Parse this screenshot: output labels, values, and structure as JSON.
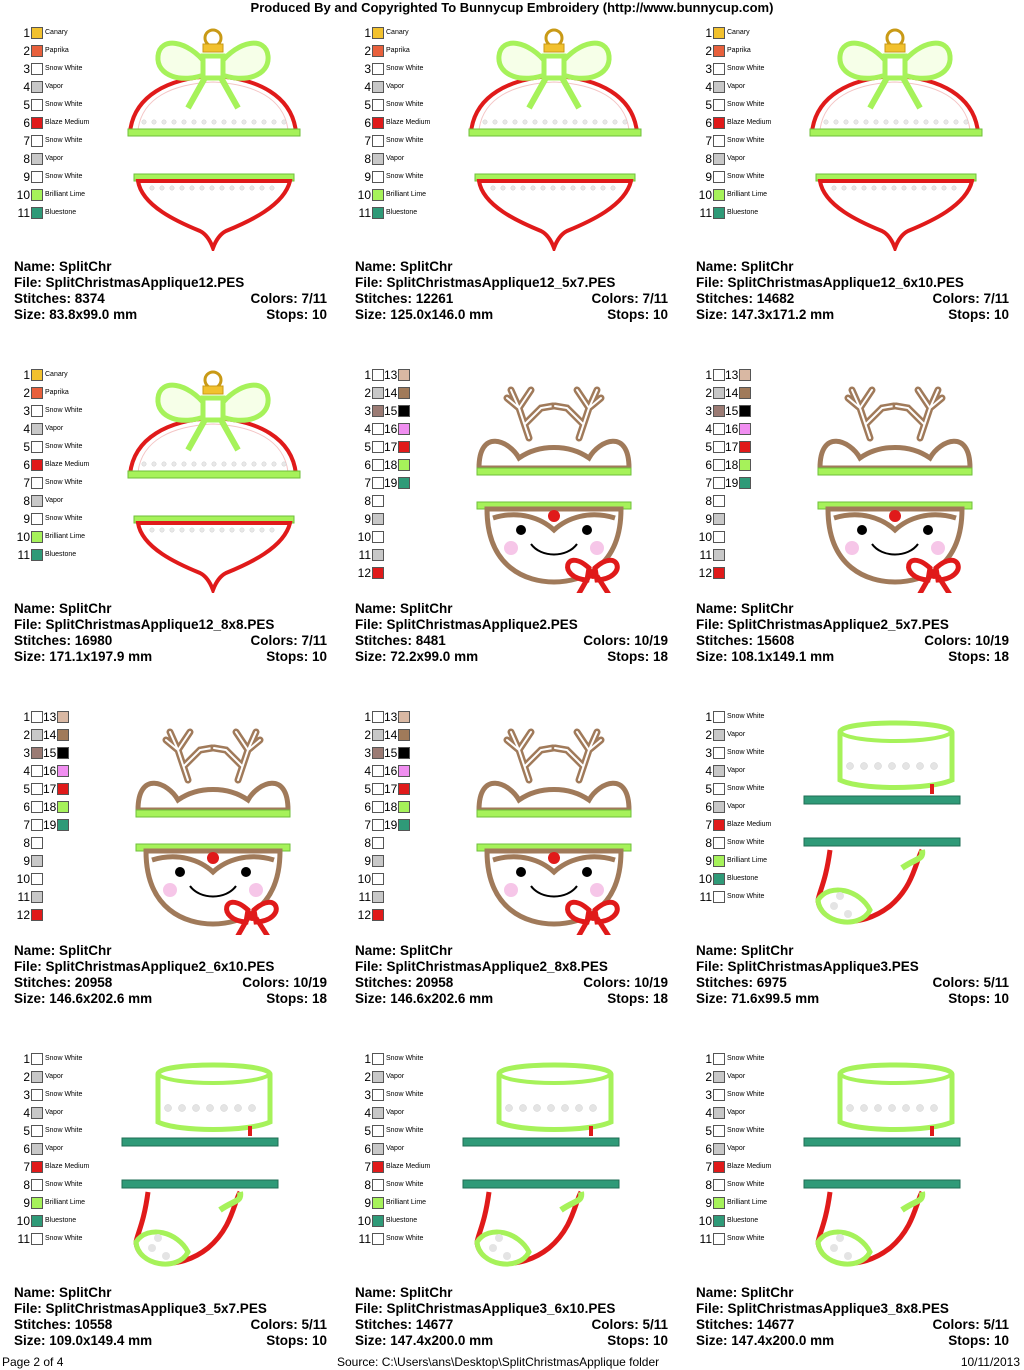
{
  "header": {
    "title": "Produced By and Copyrighted To Bunnycup Embroidery (http://www.bunnycup.com)"
  },
  "footer": {
    "page": "Page 2 of 4",
    "source": "Source: C:\\Users\\ans\\Desktop\\SplitChristmasApplique folder",
    "date": "10/11/2013"
  },
  "colors": {
    "canary": "#f2c12e",
    "paprika": "#e8603c",
    "snow_white": "#ffffff",
    "vapor": "#c8c8c8",
    "blaze_medium": "#e01a1a",
    "brilliant_lime": "#a6f25a",
    "bluestone": "#2f9a78",
    "tan_light": "#d9b8a3",
    "brown": "#a07a5a",
    "mauve": "#9b7b74",
    "black": "#000000",
    "pink": "#f08ef0"
  },
  "palettes": {
    "ornament": [
      {
        "n": "1",
        "name": "Canary",
        "color": "#f2c12e"
      },
      {
        "n": "2",
        "name": "Paprika",
        "color": "#e8603c"
      },
      {
        "n": "3",
        "name": "Snow White",
        "color": "#ffffff"
      },
      {
        "n": "4",
        "name": "Vapor",
        "color": "#c8c8c8"
      },
      {
        "n": "5",
        "name": "Snow White",
        "color": "#ffffff"
      },
      {
        "n": "6",
        "name": "Blaze Medium",
        "color": "#e01a1a"
      },
      {
        "n": "7",
        "name": "Snow White",
        "color": "#ffffff"
      },
      {
        "n": "8",
        "name": "Vapor",
        "color": "#c8c8c8"
      },
      {
        "n": "9",
        "name": "Snow White",
        "color": "#ffffff"
      },
      {
        "n": "10",
        "name": "Brilliant Lime",
        "color": "#a6f25a"
      },
      {
        "n": "11",
        "name": "Bluestone",
        "color": "#2f9a78"
      }
    ],
    "reindeer": [
      {
        "n": "1",
        "color": "#ffffff",
        "n2": "13",
        "color2": "#d9b8a3"
      },
      {
        "n": "2",
        "color": "#c8c8c8",
        "n2": "14",
        "color2": "#a07a5a"
      },
      {
        "n": "3",
        "color": "#9b7b74",
        "n2": "15",
        "color2": "#000000"
      },
      {
        "n": "4",
        "color": "#ffffff",
        "n2": "16",
        "color2": "#f08ef0"
      },
      {
        "n": "5",
        "color": "#ffffff",
        "n2": "17",
        "color2": "#e01a1a"
      },
      {
        "n": "6",
        "color": "#ffffff",
        "n2": "18",
        "color2": "#a6f25a"
      },
      {
        "n": "7",
        "color": "#ffffff",
        "n2": "19",
        "color2": "#2f9a78"
      },
      {
        "n": "8",
        "color": "#ffffff"
      },
      {
        "n": "9",
        "color": "#c8c8c8"
      },
      {
        "n": "10",
        "color": "#ffffff"
      },
      {
        "n": "11",
        "color": "#c8c8c8"
      },
      {
        "n": "12",
        "color": "#e01a1a"
      }
    ],
    "stocking": [
      {
        "n": "1",
        "name": "Snow White",
        "color": "#ffffff"
      },
      {
        "n": "2",
        "name": "Vapor",
        "color": "#c8c8c8"
      },
      {
        "n": "3",
        "name": "Snow White",
        "color": "#ffffff"
      },
      {
        "n": "4",
        "name": "Vapor",
        "color": "#c8c8c8"
      },
      {
        "n": "5",
        "name": "Snow White",
        "color": "#ffffff"
      },
      {
        "n": "6",
        "name": "Vapor",
        "color": "#c8c8c8"
      },
      {
        "n": "7",
        "name": "Blaze Medium",
        "color": "#e01a1a"
      },
      {
        "n": "8",
        "name": "Snow White",
        "color": "#ffffff"
      },
      {
        "n": "9",
        "name": "Brilliant Lime",
        "color": "#a6f25a"
      },
      {
        "n": "10",
        "name": "Bluestone",
        "color": "#2f9a78"
      },
      {
        "n": "11",
        "name": "Snow White",
        "color": "#ffffff"
      }
    ]
  },
  "designs": [
    {
      "kind": "ornament",
      "name": "Name: SplitChr",
      "file": "File: SplitChristmasApplique12.PES",
      "stitches": "Stitches: 8374",
      "colors": "Colors: 7/11",
      "size": "Size: 83.8x99.0 mm",
      "stops": "Stops: 10"
    },
    {
      "kind": "ornament",
      "name": "Name: SplitChr",
      "file": "File: SplitChristmasApplique12_5x7.PES",
      "stitches": "Stitches: 12261",
      "colors": "Colors: 7/11",
      "size": "Size: 125.0x146.0 mm",
      "stops": "Stops: 10"
    },
    {
      "kind": "ornament",
      "name": "Name: SplitChr",
      "file": "File: SplitChristmasApplique12_6x10.PES",
      "stitches": "Stitches: 14682",
      "colors": "Colors: 7/11",
      "size": "Size: 147.3x171.2 mm",
      "stops": "Stops: 10"
    },
    {
      "kind": "ornament",
      "name": "Name: SplitChr",
      "file": "File: SplitChristmasApplique12_8x8.PES",
      "stitches": "Stitches: 16980",
      "colors": "Colors: 7/11",
      "size": "Size: 171.1x197.9 mm",
      "stops": "Stops: 10"
    },
    {
      "kind": "reindeer",
      "name": "Name: SplitChr",
      "file": "File: SplitChristmasApplique2.PES",
      "stitches": "Stitches: 8481",
      "colors": "Colors: 10/19",
      "size": "Size: 72.2x99.0 mm",
      "stops": "Stops: 18"
    },
    {
      "kind": "reindeer",
      "name": "Name: SplitChr",
      "file": "File: SplitChristmasApplique2_5x7.PES",
      "stitches": "Stitches: 15608",
      "colors": "Colors: 10/19",
      "size": "Size: 108.1x149.1 mm",
      "stops": "Stops: 18"
    },
    {
      "kind": "reindeer",
      "name": "Name: SplitChr",
      "file": "File: SplitChristmasApplique2_6x10.PES",
      "stitches": "Stitches: 20958",
      "colors": "Colors: 10/19",
      "size": "Size: 146.6x202.6 mm",
      "stops": "Stops: 18"
    },
    {
      "kind": "reindeer",
      "name": "Name: SplitChr",
      "file": "File: SplitChristmasApplique2_8x8.PES",
      "stitches": "Stitches: 20958",
      "colors": "Colors: 10/19",
      "size": "Size: 146.6x202.6 mm",
      "stops": "Stops: 18"
    },
    {
      "kind": "stocking",
      "name": "Name: SplitChr",
      "file": "File: SplitChristmasApplique3.PES",
      "stitches": "Stitches: 6975",
      "colors": "Colors: 5/11",
      "size": "Size: 71.6x99.5 mm",
      "stops": "Stops: 10"
    },
    {
      "kind": "stocking",
      "name": "Name: SplitChr",
      "file": "File: SplitChristmasApplique3_5x7.PES",
      "stitches": "Stitches: 10558",
      "colors": "Colors: 5/11",
      "size": "Size: 109.0x149.4 mm",
      "stops": "Stops: 10"
    },
    {
      "kind": "stocking",
      "name": "Name: SplitChr",
      "file": "File: SplitChristmasApplique3_6x10.PES",
      "stitches": "Stitches: 14677",
      "colors": "Colors: 5/11",
      "size": "Size: 147.4x200.0 mm",
      "stops": "Stops: 10"
    },
    {
      "kind": "stocking",
      "name": "Name: SplitChr",
      "file": "File: SplitChristmasApplique3_8x8.PES",
      "stitches": "Stitches: 14677",
      "colors": "Colors: 5/11",
      "size": "Size: 147.4x200.0 mm",
      "stops": "Stops: 10"
    }
  ]
}
